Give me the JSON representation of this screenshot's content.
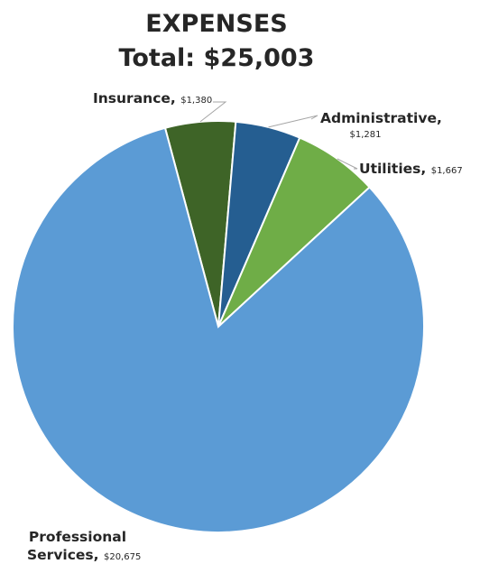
{
  "chart_data": {
    "type": "pie",
    "title": [
      "EXPENSES",
      "Total: $25,003"
    ],
    "slices": [
      {
        "name": "Insurance",
        "value_label": "$1,380",
        "value": 1380,
        "color": "#3e6427"
      },
      {
        "name": "Administrative",
        "value_label": "$1,281",
        "value": 1281,
        "color": "#255e91"
      },
      {
        "name": "Utilities",
        "value_label": "$1,667",
        "value": 1667,
        "color": "#6fad47"
      },
      {
        "name": "Professional Services",
        "value_label": "$20,675",
        "value": 20675,
        "color": "#5b9bd5"
      }
    ],
    "data_labels": "outside with leader lines",
    "legend": "none"
  }
}
